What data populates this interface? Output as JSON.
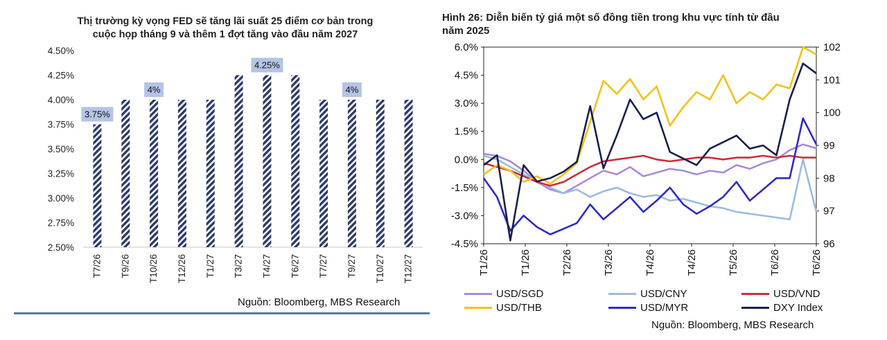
{
  "left": {
    "title_line1": "Thị trường kỳ vọng FED sẽ tăng lãi suất 25 điểm cơ bản trong",
    "title_line2": "cuộc họp tháng 9 và thêm 1 đợt tăng vào đầu năm 2027",
    "source": "Nguồn: Bloomberg, MBS Research"
  },
  "right": {
    "title_line1": "Hình 26: Diễn biến tỷ giá một số đồng tiền trong khu vực tính từ đầu",
    "title_line2": "năm 2025",
    "source": "Nguồn: Bloomberg, MBS Research"
  },
  "colors": {
    "bar": "#2b3a6b",
    "label_bg": "#b4c4e6",
    "usd_sgd": "#a98bdc",
    "usd_cny": "#9bbbe0",
    "usd_vnd": "#d22b3b",
    "usd_thb": "#f2c21b",
    "usd_myr": "#2e2bc8",
    "dxy": "#16214a"
  },
  "chart_data": [
    {
      "type": "bar",
      "title": "Thị trường kỳ vọng FED sẽ tăng lãi suất 25 điểm cơ bản trong cuộc họp tháng 9 và thêm 1 đợt tăng vào đầu năm 2027",
      "categories": [
        "T7/26",
        "T9/26",
        "T10/26",
        "T12/26",
        "T1/27",
        "T3/27",
        "T4/27",
        "T6/27",
        "T7/27",
        "T9/27",
        "T10/27",
        "T12/27"
      ],
      "values": [
        3.75,
        4.0,
        4.0,
        4.0,
        4.0,
        4.25,
        4.25,
        4.25,
        4.0,
        4.0,
        4.0,
        4.0
      ],
      "ylim": [
        2.5,
        4.5
      ],
      "yticks": [
        "2.50%",
        "2.75%",
        "3.00%",
        "3.25%",
        "3.50%",
        "3.75%",
        "4.00%",
        "4.25%",
        "4.50%"
      ],
      "annotations": [
        {
          "category": "T7/26",
          "text": "3.75%"
        },
        {
          "category": "T10/26",
          "text": "4%"
        },
        {
          "category": "T4/27",
          "text": "4.25%"
        },
        {
          "category": "T9/27",
          "text": "4%"
        }
      ],
      "grid": false
    },
    {
      "type": "line",
      "title": "Hình 26: Diễn biến tỷ giá một số đồng tiền trong khu vực tính từ đầu năm 2025",
      "x_labels": [
        "T1/26",
        "T1/26",
        "T2/26",
        "T3/26",
        "T4/26",
        "T4/26",
        "T5/26",
        "T6/26",
        "T6/26"
      ],
      "ylim_left": [
        -4.5,
        6.0
      ],
      "yticks_left": [
        "-4.5%",
        "-3.0%",
        "-1.5%",
        "0.0%",
        "1.5%",
        "3.0%",
        "4.5%",
        "6.0%"
      ],
      "ylim_right": [
        96,
        102
      ],
      "yticks_right": [
        "96",
        "97",
        "98",
        "99",
        "100",
        "101",
        "102"
      ],
      "legend_position": "bottom",
      "series": [
        {
          "name": "USD/SGD",
          "axis": "left",
          "values": [
            0.3,
            0.2,
            -0.1,
            -0.6,
            -1.2,
            -1.6,
            -1.8,
            -1.4,
            -1.0,
            -0.6,
            -0.8,
            -0.4,
            -0.9,
            -0.7,
            -0.5,
            -0.6,
            -0.8,
            -0.6,
            -0.7,
            -0.3,
            -0.5,
            -0.2,
            0.0,
            0.5,
            0.8,
            0.6
          ]
        },
        {
          "name": "USD/CNY",
          "axis": "left",
          "values": [
            0.2,
            0.0,
            -0.4,
            -0.8,
            -1.2,
            -1.5,
            -1.8,
            -1.6,
            -2.0,
            -1.7,
            -1.5,
            -1.8,
            -2.0,
            -1.9,
            -2.2,
            -2.1,
            -2.3,
            -2.5,
            -2.6,
            -2.8,
            -2.9,
            -3.0,
            -3.1,
            -3.2,
            0.0,
            -2.8
          ]
        },
        {
          "name": "USD/VND",
          "axis": "left",
          "values": [
            -0.2,
            -0.4,
            -0.6,
            -0.9,
            -1.2,
            -1.4,
            -1.2,
            -0.8,
            -0.4,
            -0.1,
            0.0,
            0.1,
            0.2,
            0.0,
            -0.1,
            0.0,
            0.1,
            0.1,
            0.0,
            0.1,
            0.1,
            0.2,
            0.1,
            0.2,
            0.1,
            0.1
          ]
        },
        {
          "name": "USD/THB",
          "axis": "left",
          "values": [
            -0.8,
            -0.3,
            -0.6,
            -1.2,
            -0.9,
            -1.3,
            -0.8,
            -0.2,
            2.0,
            4.2,
            3.5,
            4.3,
            3.2,
            3.9,
            1.8,
            2.8,
            3.6,
            3.2,
            4.5,
            3.0,
            3.6,
            3.2,
            4.0,
            3.8,
            6.0,
            5.6
          ]
        },
        {
          "name": "USD/MYR",
          "axis": "left",
          "values": [
            -1.0,
            -2.0,
            -3.8,
            -3.0,
            -3.6,
            -4.0,
            -3.7,
            -3.4,
            -2.4,
            -3.2,
            -2.6,
            -2.0,
            -2.8,
            -2.2,
            -1.5,
            -2.4,
            -2.9,
            -2.5,
            -2.0,
            -1.2,
            -2.2,
            -1.6,
            -1.0,
            -1.0,
            2.2,
            0.8
          ]
        },
        {
          "name": "DXY Index",
          "axis": "right",
          "values": [
            98.4,
            98.7,
            96.1,
            98.4,
            97.9,
            98.0,
            98.2,
            98.5,
            100.2,
            98.3,
            99.3,
            100.4,
            99.8,
            100.0,
            98.8,
            98.6,
            98.4,
            98.9,
            99.1,
            99.3,
            98.9,
            99.0,
            98.7,
            100.4,
            101.5,
            101.2
          ]
        }
      ]
    }
  ]
}
